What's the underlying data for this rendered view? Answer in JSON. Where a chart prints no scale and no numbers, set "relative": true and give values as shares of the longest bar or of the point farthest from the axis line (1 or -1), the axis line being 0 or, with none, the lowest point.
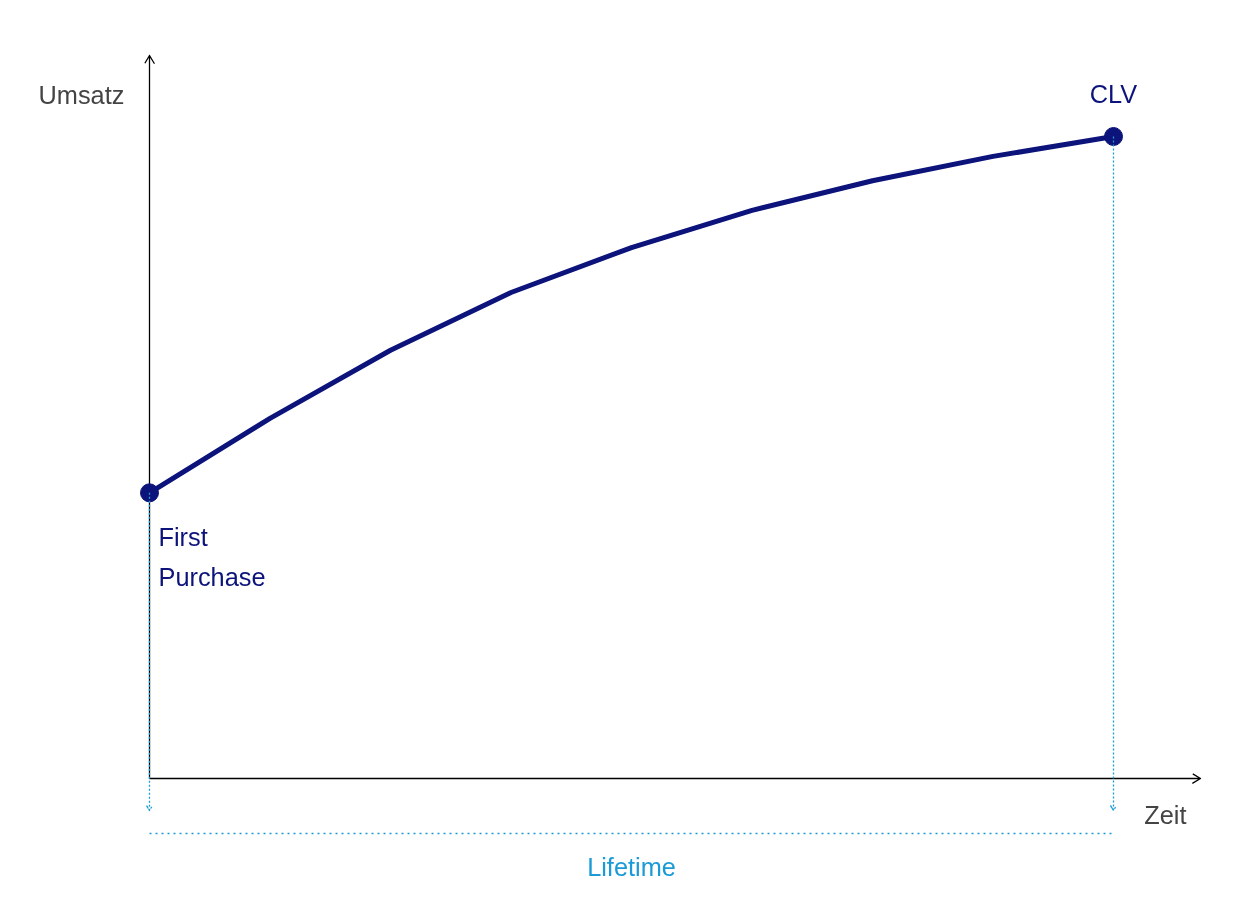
{
  "chart_data": {
    "type": "line",
    "relative": true,
    "xlabel": "Zeit",
    "ylabel": "Umsatz",
    "categories": [
      null,
      null,
      null,
      null,
      null,
      null,
      null,
      null,
      null
    ],
    "series": [
      {
        "color": "#0c137a",
        "values": [
          0.445,
          0.561,
          0.667,
          0.757,
          0.827,
          0.885,
          0.931,
          0.969,
          1
        ]
      }
    ],
    "annotations": [
      "First\nPurchase",
      "CLV",
      "Lifetime"
    ]
  }
}
